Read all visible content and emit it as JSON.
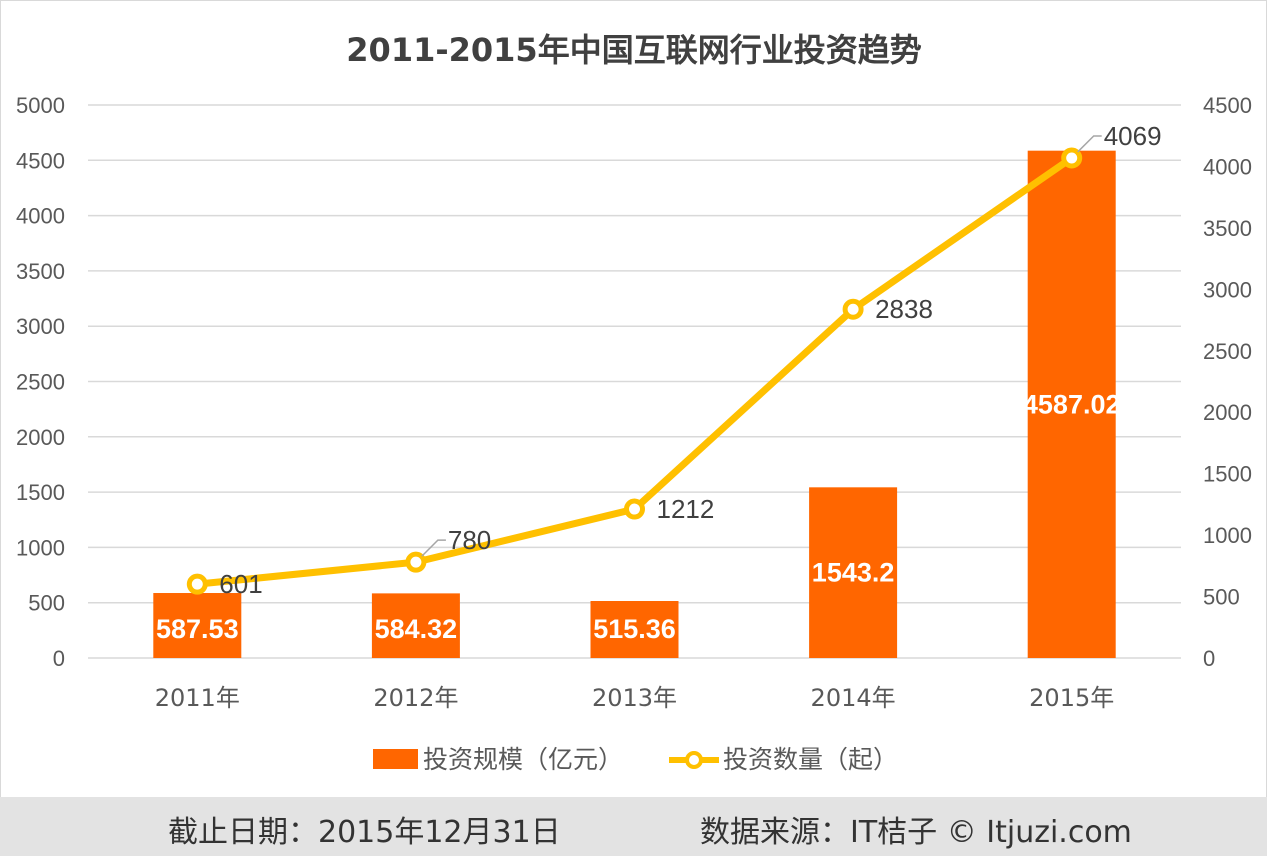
{
  "colors": {
    "bar": "#ff6600",
    "line": "#ffc000",
    "grid": "#d9d9d9",
    "axis_text": "#595959",
    "label_text": "#404040",
    "footer_bg": "#e3e3e3"
  },
  "chart_data": {
    "type": "bar+line",
    "title": "2011-2015年中国互联网行业投资趋势",
    "categories": [
      "2011年",
      "2012年",
      "2013年",
      "2014年",
      "2015年"
    ],
    "series": [
      {
        "name": "投资规模（亿元）",
        "type": "bar",
        "axis": "left",
        "values": [
          587.53,
          584.32,
          515.36,
          1543.2,
          4587.02
        ],
        "labels": [
          "587.53",
          "584.32",
          "515.36",
          "1543.2",
          "4587.02"
        ]
      },
      {
        "name": "投资数量（起）",
        "type": "line",
        "axis": "right",
        "values": [
          601,
          780,
          1212,
          2838,
          4069
        ],
        "labels": [
          "601",
          "780",
          "1212",
          "2838",
          "4069"
        ]
      }
    ],
    "left_axis": {
      "min": 0,
      "max": 5000,
      "step": 500,
      "ticks": [
        "0",
        "500",
        "1000",
        "1500",
        "2000",
        "2500",
        "3000",
        "3500",
        "4000",
        "4500",
        "5000"
      ]
    },
    "right_axis": {
      "min": 0,
      "max": 4500,
      "step": 500,
      "ticks": [
        "0",
        "500",
        "1000",
        "1500",
        "2000",
        "2500",
        "3000",
        "3500",
        "4000",
        "4500"
      ]
    },
    "grid": true,
    "legend_position": "bottom"
  },
  "footer": {
    "date_text": "截止日期：2015年12月31日",
    "source_text": "数据来源：IT桔子 © Itjuzi.com"
  }
}
